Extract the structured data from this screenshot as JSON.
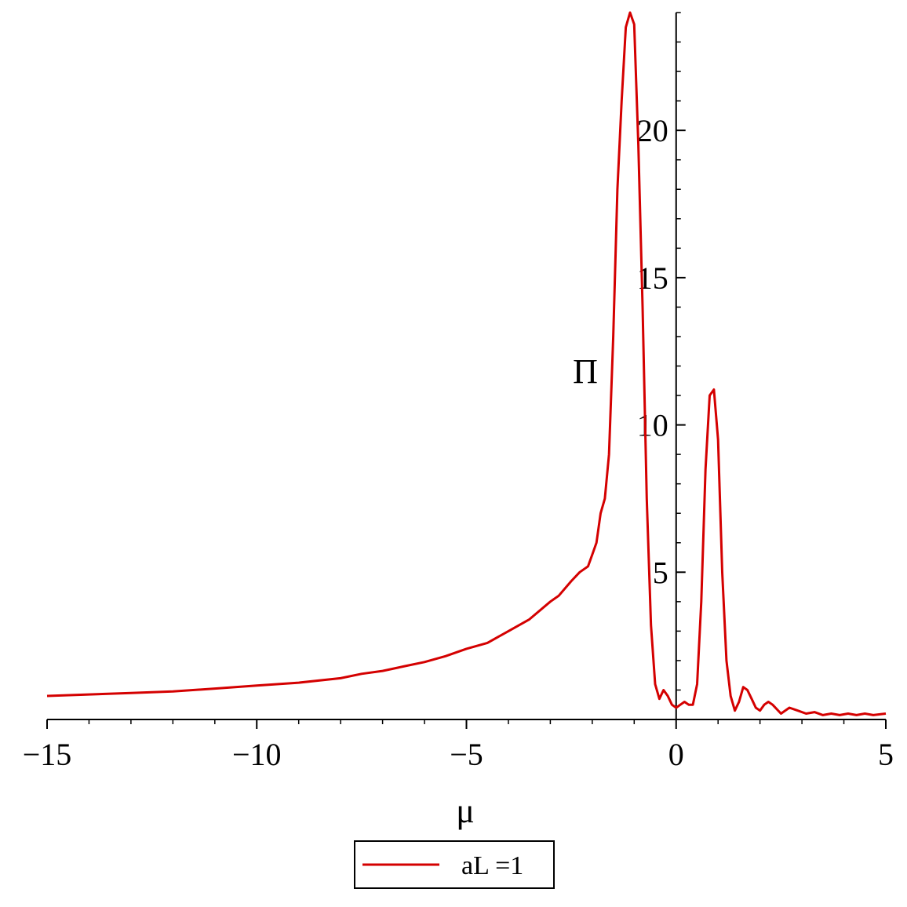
{
  "chart_data": {
    "type": "line",
    "title": "",
    "xlabel": "μ",
    "ylabel": "Π",
    "xlim": [
      -15,
      5
    ],
    "ylim": [
      0,
      24
    ],
    "grid": false,
    "x_ticks": [
      -15,
      -10,
      -5,
      0,
      5
    ],
    "x_tick_labels": [
      "−15",
      "−10",
      "−5",
      "0",
      "5"
    ],
    "y_ticks": [
      5,
      10,
      15,
      20
    ],
    "y_tick_labels": [
      "5",
      "10",
      "15",
      "20"
    ],
    "legend": {
      "position": "bottom-center",
      "entries": [
        "aL =1"
      ]
    },
    "series": [
      {
        "name": "aL =1",
        "color": "#d40000",
        "x": [
          -15,
          -14,
          -13,
          -12,
          -11,
          -10,
          -9,
          -8,
          -7.5,
          -7,
          -6.5,
          -6,
          -5.5,
          -5,
          -4.5,
          -4,
          -3.5,
          -3,
          -2.8,
          -2.5,
          -2.3,
          -2.1,
          -2,
          -1.9,
          -1.8,
          -1.7,
          -1.6,
          -1.5,
          -1.4,
          -1.3,
          -1.2,
          -1.1,
          -1.0,
          -0.9,
          -0.8,
          -0.7,
          -0.6,
          -0.5,
          -0.4,
          -0.3,
          -0.2,
          -0.1,
          0,
          0.1,
          0.2,
          0.3,
          0.4,
          0.5,
          0.6,
          0.7,
          0.8,
          0.9,
          1.0,
          1.1,
          1.2,
          1.3,
          1.4,
          1.5,
          1.6,
          1.7,
          1.8,
          1.9,
          2.0,
          2.1,
          2.2,
          2.3,
          2.5,
          2.7,
          2.9,
          3.1,
          3.3,
          3.5,
          3.7,
          3.9,
          4.1,
          4.3,
          4.5,
          4.7,
          5.0
        ],
        "y": [
          0.8,
          0.85,
          0.9,
          0.95,
          1.05,
          1.15,
          1.25,
          1.4,
          1.55,
          1.65,
          1.8,
          1.95,
          2.15,
          2.4,
          2.6,
          3.0,
          3.4,
          4.0,
          4.2,
          4.7,
          5.0,
          5.2,
          5.6,
          6.0,
          7.0,
          7.5,
          9.0,
          13.0,
          18.0,
          21.0,
          23.5,
          24.0,
          23.6,
          19.5,
          14.0,
          7.5,
          3.2,
          1.2,
          0.7,
          1.0,
          0.8,
          0.5,
          0.4,
          0.5,
          0.6,
          0.5,
          0.5,
          1.2,
          4.0,
          8.5,
          11.0,
          11.2,
          9.5,
          5.0,
          2.0,
          0.8,
          0.3,
          0.6,
          1.1,
          1.0,
          0.7,
          0.4,
          0.3,
          0.5,
          0.6,
          0.5,
          0.2,
          0.4,
          0.3,
          0.2,
          0.25,
          0.15,
          0.2,
          0.15,
          0.2,
          0.15,
          0.2,
          0.15,
          0.2
        ]
      }
    ]
  }
}
